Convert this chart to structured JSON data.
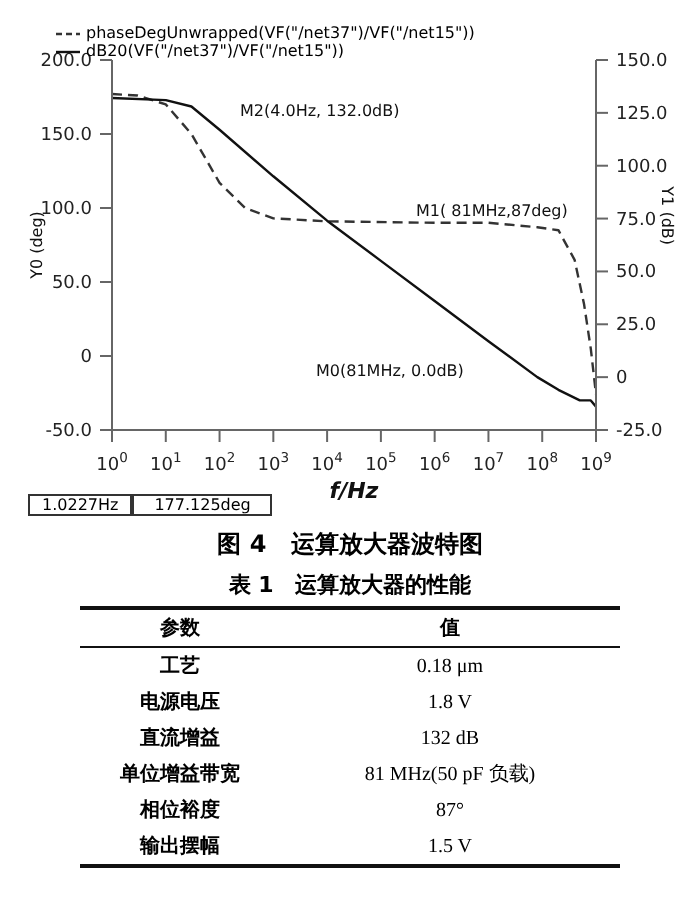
{
  "chart_data": {
    "type": "line",
    "xlabel": "f/Hz",
    "ylabel": "Y0 (deg)",
    "y2label": "Y1 (dB)",
    "log": "x",
    "grid": false,
    "legend": "top left",
    "marker": "none",
    "xlim": [
      1,
      1000000000
    ],
    "xticks": [
      {
        "value": 1,
        "label": "10$^{0}$"
      },
      {
        "value": 10,
        "label": "10$^{1}$"
      },
      {
        "value": 100,
        "label": "10$^{2}$"
      },
      {
        "value": 1000,
        "label": "10$^{3}$"
      },
      {
        "value": 10000,
        "label": "10$^{4}$"
      },
      {
        "value": 100000,
        "label": "10$^{5}$"
      },
      {
        "value": 1000000,
        "label": "10$^{6}$"
      },
      {
        "value": 10000000,
        "label": "10$^{7}$"
      },
      {
        "value": 100000000,
        "label": "10$^{8}$"
      },
      {
        "value": 1000000000,
        "label": "10$^{9}$"
      }
    ],
    "ylim": [
      -50,
      200
    ],
    "yticks": [
      {
        "value": -50,
        "label": "-50.0"
      },
      0,
      {
        "value": 50,
        "label": "50.0"
      },
      {
        "value": 100,
        "label": "100.0"
      },
      {
        "value": 150,
        "label": "150.0"
      },
      {
        "value": 200,
        "label": "200.0"
      }
    ],
    "y2lim": [
      -25,
      150
    ],
    "y2ticks": [
      {
        "value": -25,
        "label": "-25.0"
      },
      0,
      {
        "value": 25,
        "label": "25.0"
      },
      {
        "value": 50,
        "label": "50.0"
      },
      {
        "value": 75,
        "label": "75.0"
      },
      {
        "value": 100,
        "label": "100.0"
      },
      {
        "value": 125,
        "label": "125.0"
      },
      {
        "value": 150,
        "label": "150.0"
      }
    ],
    "series": [
      {
        "name": "phaseDegUnwrapped(VF(\"/net37\")/VF(\"/net15\"))",
        "color": "#333333",
        "line_style": "dashed",
        "x": [
          1,
          3,
          10,
          30,
          100,
          300,
          1000,
          10000,
          1000000,
          10000000,
          81000000,
          200000000,
          400000000,
          600000000,
          800000000,
          1000000000
        ],
        "values": [
          177,
          176,
          170,
          150,
          117,
          100,
          93,
          91,
          90,
          90,
          87,
          85,
          65,
          35,
          5,
          -26
        ]
      },
      {
        "name": "dB20(VF(\"/net37\")/VF(\"/net15\"))",
        "color": "#111111",
        "line_style": "solid",
        "axis": "y2",
        "x": [
          1,
          10,
          30,
          100,
          1000,
          10000,
          100000,
          1000000,
          10000000,
          81000000,
          200000000,
          500000000,
          800000000,
          1000000000
        ],
        "values": [
          132,
          131,
          128,
          117,
          95,
          74,
          55,
          36,
          17,
          0,
          -6,
          -11,
          -11,
          -14
        ]
      }
    ],
    "annotations": [
      "M1( 81MHz,87deg)",
      "M2(4.0Hz, 132.0dB)",
      "M0(81MHz, 0.0dB)",
      "1.0227Hz",
      "177.125deg",
      "图 4　运算放大器波特图",
      "表 1　运算放大器的性能",
      "参数",
      "值",
      "工艺",
      "0.18 μm",
      "电源电压",
      "1.8 V",
      "直流增益",
      "132 dB",
      "单位增益带宽",
      "81 MHz(50 pF 负载)",
      "相位裕度",
      "87°",
      "输出摆幅",
      "1.5 V"
    ]
  }
}
